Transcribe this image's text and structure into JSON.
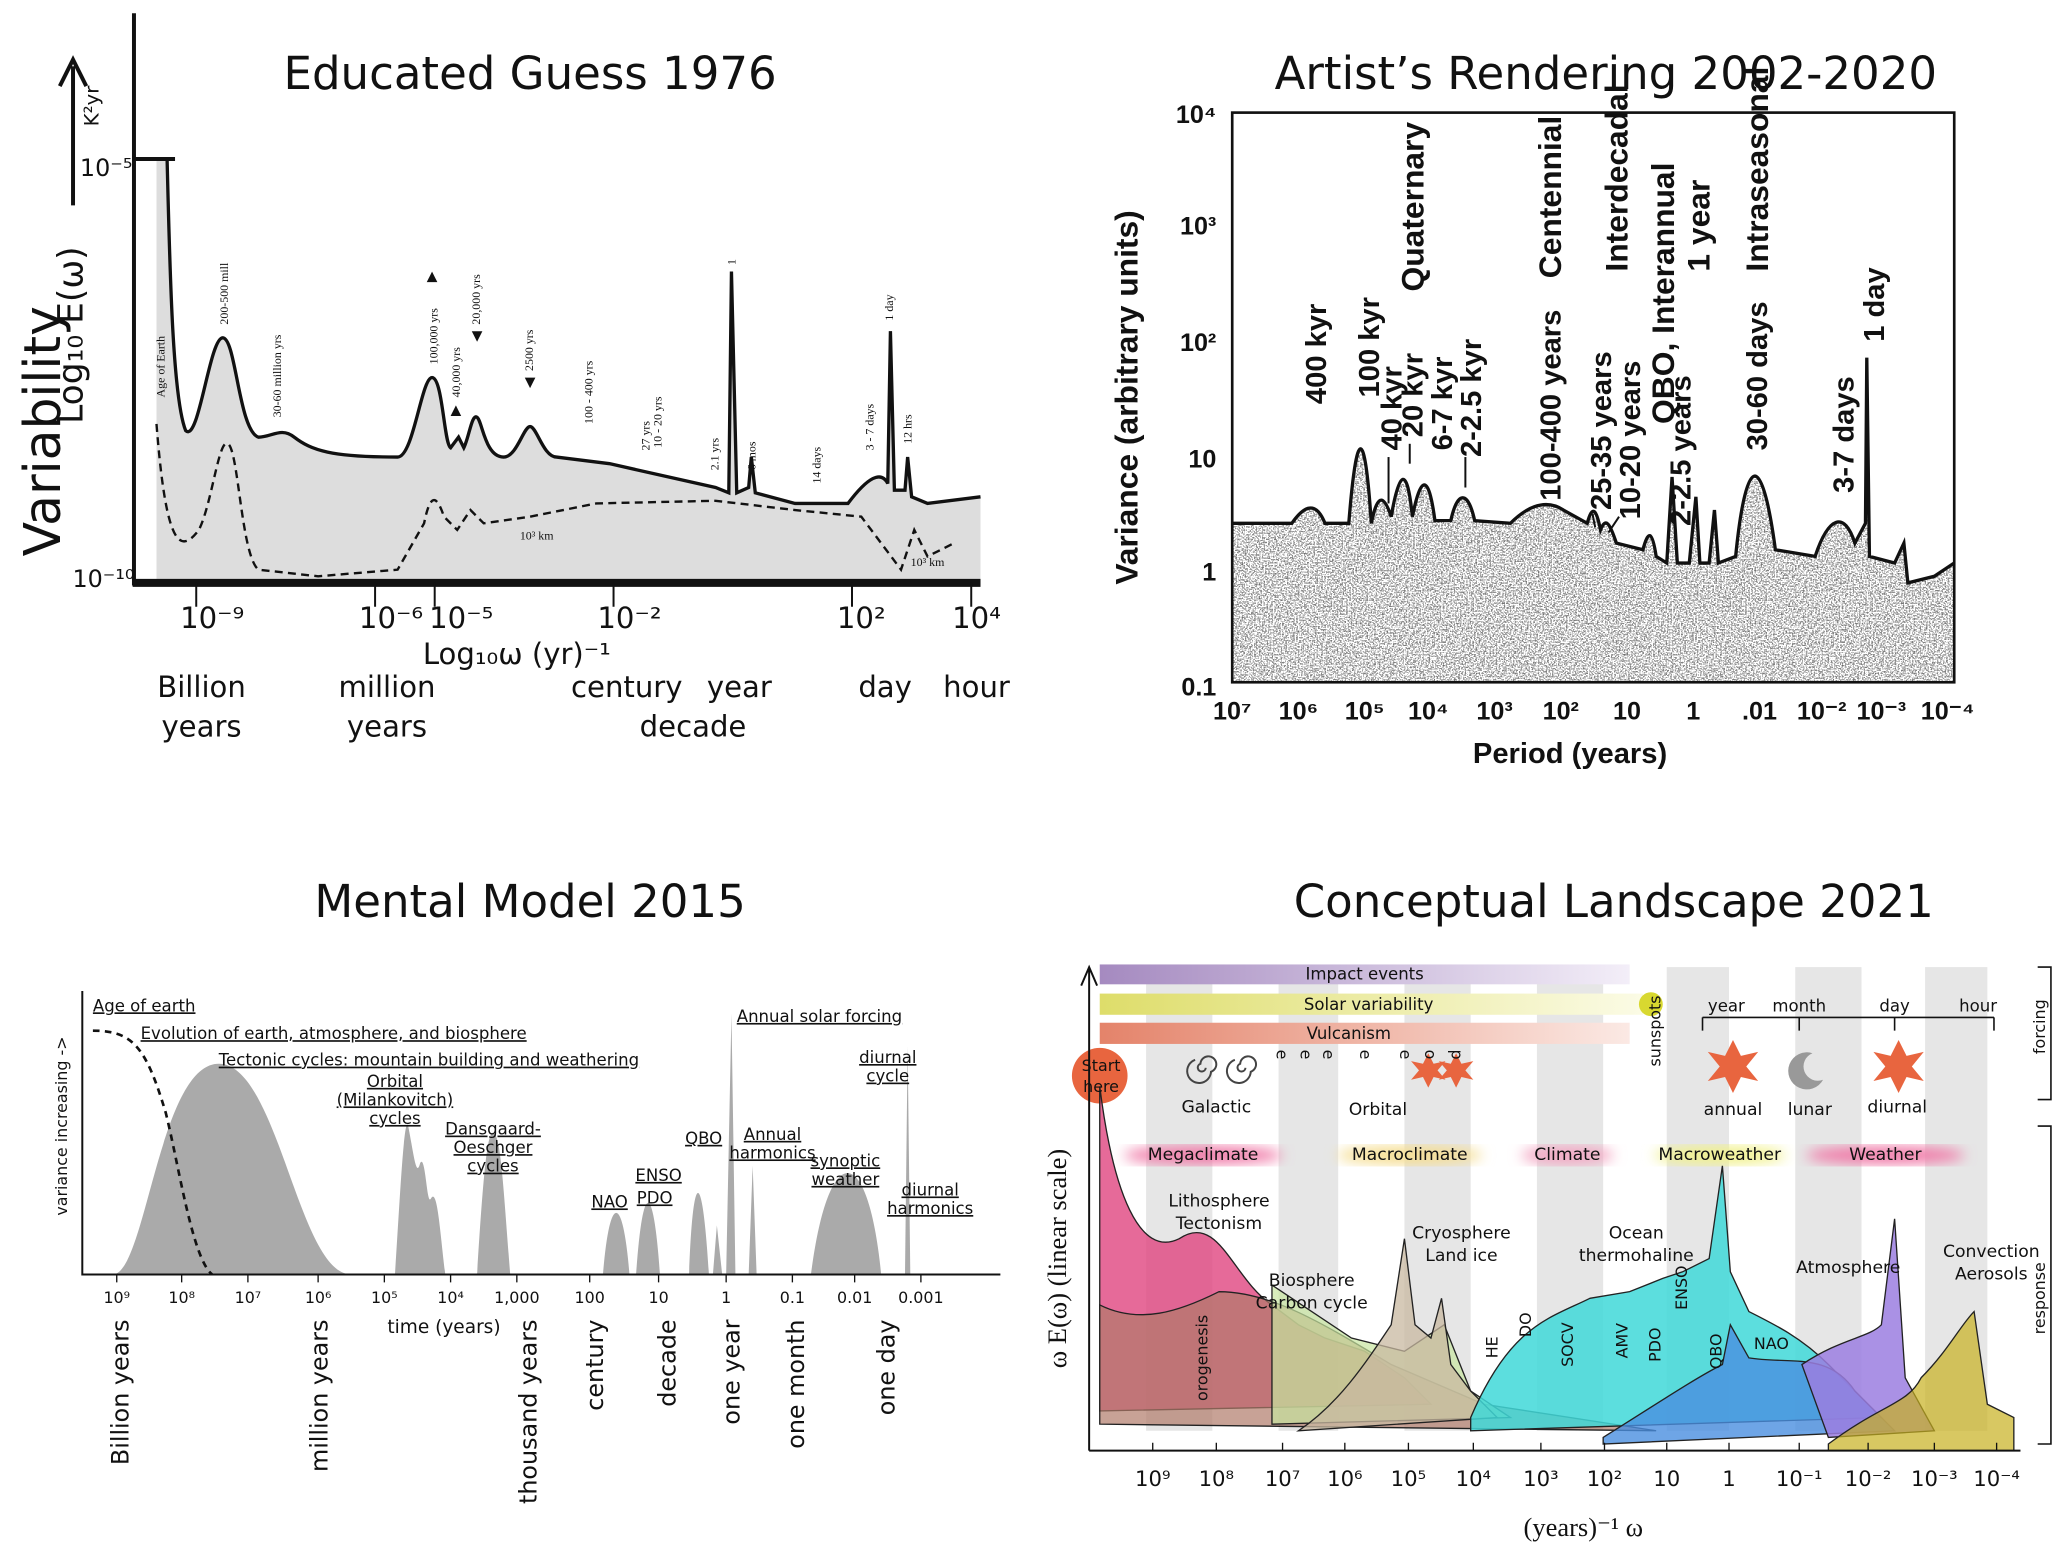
{
  "panels": [
    {
      "title": "Educated Guess 1976",
      "y_label": "Variability",
      "y_sublabel": "Log₁₀ E(ω)",
      "units": "K²yr",
      "y_ticks": [
        "10⁻⁵",
        "10⁻¹⁰"
      ],
      "x_ticks": [
        "10⁻⁹",
        "10⁻⁶",
        "10⁻⁵",
        "10⁻²",
        "10²",
        "10⁴"
      ],
      "x_label": "Log₁₀ω (yr)⁻¹",
      "scale_labels": [
        [
          "Billion",
          "years"
        ],
        [
          "million",
          "years"
        ],
        [
          "century"
        ],
        [
          "year"
        ],
        [
          "decade"
        ],
        [
          "day"
        ],
        [
          "hour"
        ]
      ],
      "peaks": [
        "Age of Earth",
        "200-500 mill",
        "30-60 million yrs",
        "100,000 yrs",
        "40,000 yrs",
        "20,000 yrs",
        "2500 yrs",
        "100 - 400 yrs",
        "27 yrs",
        "10 - 20 yrs",
        "2.1 yrs",
        "1",
        "6 mos",
        "14 days",
        "3 - 7 days",
        "1 day",
        "12 hrs"
      ],
      "curve_notes": [
        "10³ km",
        "10³ km"
      ]
    },
    {
      "title": "Artist’s Rendering 2002-2020",
      "y_label": "Variance (arbitrary units)",
      "x_label": "Period (years)",
      "y_ticks": [
        "10⁴",
        "10³",
        "10²",
        "10",
        "1",
        "0.1"
      ],
      "x_ticks": [
        "10⁷",
        "10⁶",
        "10⁵",
        "10⁴",
        "10³",
        "10²",
        "10",
        "1",
        ".01",
        "10⁻²",
        "10⁻³",
        "10⁻⁴"
      ],
      "annotations": [
        "400 kyr",
        "100 kyr",
        "40 kyr",
        "20 kyr",
        "6-7 kyr",
        "2-2.5 kyr",
        "Quaternary",
        "Centennial",
        "100-400 years",
        "25-35 years",
        "10-20 years",
        "Interdecadal",
        "QBO, Interannual",
        "2-2.5 years",
        "1 year",
        "Intraseasonal",
        "30-60 days",
        "3-7 days",
        "1 day"
      ]
    },
    {
      "title": "Mental Model 2015",
      "y_label": "variance increasing ->",
      "x_label": "time (years)",
      "x_ticks": [
        "10⁹",
        "10⁸",
        "10⁷",
        "10⁶",
        "10⁵",
        "10⁴",
        "1,000",
        "100",
        "10",
        "1",
        "0.1",
        "0.01",
        "0.001"
      ],
      "scale_labels": [
        "Billion years",
        "million years",
        "thousand years",
        "century",
        "decade",
        "one year",
        "one month",
        "one day"
      ],
      "annotations": [
        [
          "Age of earth"
        ],
        [
          "Evolution of earth, atmosphere, and biosphere"
        ],
        [
          "Tectonic cycles: mountain building and weathering"
        ],
        [
          "Orbital",
          "(Milankovitch)",
          "cycles"
        ],
        [
          "Dansgaard-",
          "Oeschger",
          "cycles"
        ],
        [
          "NAO"
        ],
        [
          "ENSO"
        ],
        [
          "PDO"
        ],
        [
          "QBO"
        ],
        [
          "Annual solar forcing"
        ],
        [
          "Annual",
          "harmonics"
        ],
        [
          "synoptic",
          "weather"
        ],
        [
          "diurnal",
          "cycle"
        ],
        [
          "diurnal",
          "harmonics"
        ]
      ]
    },
    {
      "title": "Conceptual Landscape 2021",
      "y_label": "ω E(ω) (linear scale)",
      "x_label": "(years)⁻¹ ω",
      "x_ticks": [
        "10⁹",
        "10⁸",
        "10⁷",
        "10⁶",
        "10⁵",
        "10⁴",
        "10³",
        "10²",
        "10",
        "1",
        "10⁻¹",
        "10⁻²",
        "10⁻³",
        "10⁻⁴"
      ],
      "forcing_bars": [
        "Impact events",
        "Solar variability",
        "Vulcanism"
      ],
      "start": [
        "Start",
        "here"
      ],
      "sunspots": "sunspots",
      "periods": [
        "year",
        "month",
        "day",
        "hour"
      ],
      "side_labels": [
        "forcing",
        "response"
      ],
      "forcings": [
        "Galactic",
        "Orbital",
        "annual",
        "lunar",
        "diurnal"
      ],
      "orbital_symbols": [
        "e",
        "e",
        "e",
        "e",
        "e",
        "o",
        "p"
      ],
      "regimes": [
        "Megaclimate",
        "Macroclimate",
        "Climate",
        "Macroweather",
        "Weather"
      ],
      "components": [
        [
          "Lithosphere",
          "Tectonism"
        ],
        [
          "Biosphere",
          "Carbon cycle"
        ],
        [
          "Cryosphere",
          "Land ice"
        ],
        [
          "Ocean",
          "thermohaline"
        ],
        [
          "Atmosphere"
        ],
        [
          "Convection",
          "Aerosols"
        ]
      ],
      "modes": [
        "orogenesis",
        "HE",
        "DO",
        "SOCV",
        "AMV",
        "PDO",
        "ENSO",
        "QBO",
        "NAO"
      ]
    }
  ]
}
